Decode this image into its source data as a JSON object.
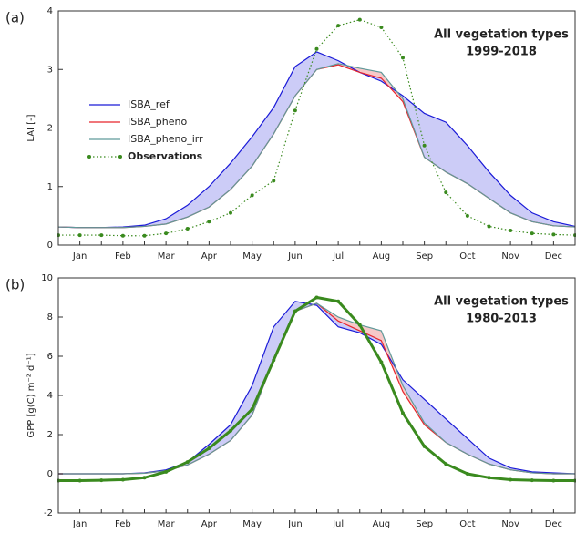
{
  "chart_data": [
    {
      "type": "line",
      "panel_label": "(a)",
      "ylabel": "LAI [-]",
      "annotation": [
        "All vegetation types",
        "1999-2018"
      ],
      "categories": [
        null,
        "Jan",
        null,
        "Feb",
        null,
        "Mar",
        null,
        "Apr",
        null,
        "May",
        null,
        "Jun",
        null,
        "Jul",
        null,
        "Aug",
        null,
        "Sep",
        null,
        "Oct",
        null,
        "Nov",
        null,
        "Dec",
        null
      ],
      "series": [
        {
          "name": "ISBA_ref",
          "color": "#1a1ad8",
          "linestyle": "solid",
          "markers": false,
          "values": [
            0.31,
            0.3,
            0.3,
            0.31,
            0.34,
            0.45,
            0.68,
            1.0,
            1.4,
            1.85,
            2.35,
            3.05,
            3.3,
            3.15,
            2.95,
            2.8,
            2.55,
            2.25,
            2.1,
            1.7,
            1.25,
            0.85,
            0.55,
            0.4,
            0.32
          ]
        },
        {
          "name": "ISBA_pheno",
          "color": "#e8242b",
          "linestyle": "solid",
          "markers": false,
          "values": [
            0.31,
            0.3,
            0.3,
            0.3,
            0.32,
            0.36,
            0.48,
            0.65,
            0.95,
            1.35,
            1.9,
            2.55,
            3.0,
            3.08,
            2.95,
            2.85,
            2.45,
            1.5,
            1.25,
            1.05,
            0.8,
            0.55,
            0.4,
            0.33,
            0.31
          ]
        },
        {
          "name": "ISBA_pheno_irr",
          "color": "#5f9a9a",
          "linestyle": "solid",
          "markers": false,
          "values": [
            0.31,
            0.3,
            0.3,
            0.3,
            0.32,
            0.36,
            0.48,
            0.65,
            0.95,
            1.35,
            1.9,
            2.55,
            3.0,
            3.1,
            3.02,
            2.95,
            2.5,
            1.5,
            1.25,
            1.05,
            0.8,
            0.55,
            0.4,
            0.33,
            0.31
          ]
        },
        {
          "name": "Observations",
          "color": "#3a8a1e",
          "linestyle": "dotted",
          "markers": true,
          "values": [
            0.17,
            0.17,
            0.17,
            0.16,
            0.16,
            0.2,
            0.28,
            0.4,
            0.55,
            0.85,
            1.1,
            2.3,
            3.35,
            3.75,
            3.85,
            3.72,
            3.2,
            1.7,
            0.9,
            0.5,
            0.32,
            0.25,
            0.2,
            0.18,
            0.17
          ]
        }
      ],
      "fills": [
        {
          "series": [
            0,
            2
          ],
          "color": "#ccccf7"
        },
        {
          "series": [
            1,
            2
          ],
          "color": "#f7c8c8"
        }
      ],
      "legend": true,
      "ylim": [
        0,
        4
      ],
      "yticks": [
        0,
        1,
        2,
        3,
        4
      ]
    },
    {
      "type": "line",
      "panel_label": "(b)",
      "ylabel": "GPP [g(C) m⁻² d⁻¹]",
      "annotation": [
        "All vegetation types",
        "1980-2013"
      ],
      "categories": [
        null,
        "Jan",
        null,
        "Feb",
        null,
        "Mar",
        null,
        "Apr",
        null,
        "May",
        null,
        "Jun",
        null,
        "Jul",
        null,
        "Aug",
        null,
        "Sep",
        null,
        "Oct",
        null,
        "Nov",
        null,
        "Dec",
        null
      ],
      "series": [
        {
          "name": "ISBA_ref",
          "color": "#1a1ad8",
          "linestyle": "solid",
          "markers": false,
          "values": [
            0,
            0,
            0,
            0,
            0.05,
            0.2,
            0.6,
            1.5,
            2.5,
            4.5,
            7.5,
            8.8,
            8.6,
            7.5,
            7.2,
            6.6,
            4.8,
            3.8,
            2.8,
            1.8,
            0.8,
            0.3,
            0.1,
            0.05,
            0
          ]
        },
        {
          "name": "ISBA_pheno",
          "color": "#e8242b",
          "linestyle": "solid",
          "markers": false,
          "values": [
            0,
            0,
            0,
            0,
            0.03,
            0.15,
            0.45,
            1.0,
            1.7,
            3.0,
            5.8,
            8.3,
            8.7,
            7.8,
            7.3,
            6.8,
            4.2,
            2.5,
            1.6,
            1.0,
            0.5,
            0.2,
            0.05,
            0,
            0
          ]
        },
        {
          "name": "ISBA_pheno_irr",
          "color": "#5f9a9a",
          "linestyle": "solid",
          "markers": false,
          "values": [
            0,
            0,
            0,
            0,
            0.03,
            0.15,
            0.45,
            1.0,
            1.7,
            3.0,
            5.8,
            8.3,
            8.7,
            8.0,
            7.6,
            7.3,
            4.5,
            2.6,
            1.6,
            1.0,
            0.5,
            0.2,
            0.05,
            0,
            0
          ]
        },
        {
          "name": "Observations",
          "color": "#3a8a1e",
          "linestyle": "solid",
          "markers": true,
          "values": [
            -0.35,
            -0.35,
            -0.33,
            -0.3,
            -0.2,
            0.1,
            0.6,
            1.3,
            2.2,
            3.3,
            5.8,
            8.3,
            9.0,
            8.8,
            7.6,
            5.7,
            3.1,
            1.4,
            0.5,
            0.0,
            -0.2,
            -0.3,
            -0.33,
            -0.35,
            -0.35
          ]
        }
      ],
      "fills": [
        {
          "series": [
            0,
            2
          ],
          "color": "#ccccf7"
        },
        {
          "series": [
            1,
            2
          ],
          "color": "#f7c8c8"
        }
      ],
      "legend": false,
      "ylim": [
        -2,
        10
      ],
      "yticks": [
        -2,
        0,
        2,
        4,
        6,
        8,
        10
      ]
    }
  ]
}
